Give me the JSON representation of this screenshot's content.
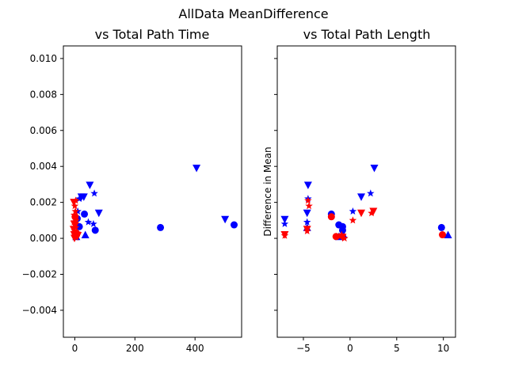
{
  "figure": {
    "suptitle": "AllData MeanDifference"
  },
  "colors": {
    "blue": "#0000ff",
    "red": "#ff0000",
    "axis": "#000000"
  },
  "chart_data": [
    {
      "type": "scatter",
      "title": "vs Total Path Time",
      "xlabel": "",
      "ylabel": "",
      "xlim": [
        -38,
        555
      ],
      "ylim": [
        -0.0055,
        0.0107
      ],
      "xticks": [
        0,
        200,
        400
      ],
      "xtick_labels": [
        "0",
        "200",
        "400"
      ],
      "yticks": [
        -0.004,
        -0.002,
        0.0,
        0.002,
        0.004,
        0.006,
        0.008,
        0.01
      ],
      "ytick_labels": [
        "−0.004",
        "−0.002",
        "0.000",
        "0.002",
        "0.004",
        "0.006",
        "0.008",
        "0.010"
      ],
      "grid": false,
      "series": [
        {
          "color": "blue",
          "points": [
            {
              "x": 32,
              "y": 0.00135,
              "m": "circle"
            },
            {
              "x": 15,
              "y": 0.00065,
              "m": "circle"
            },
            {
              "x": 68,
              "y": 0.00045,
              "m": "circle"
            },
            {
              "x": 285,
              "y": 0.0006,
              "m": "circle"
            },
            {
              "x": 530,
              "y": 0.00075,
              "m": "circle"
            },
            {
              "x": 8,
              "y": 0.0011,
              "m": "circle"
            },
            {
              "x": 50,
              "y": 0.00295,
              "m": "tri_down"
            },
            {
              "x": 405,
              "y": 0.0039,
              "m": "tri_down"
            },
            {
              "x": 500,
              "y": 0.00105,
              "m": "tri_down"
            },
            {
              "x": 80,
              "y": 0.0014,
              "m": "tri_down"
            },
            {
              "x": 22,
              "y": 0.0023,
              "m": "tri_down"
            },
            {
              "x": 30,
              "y": 0.0023,
              "m": "tri_down"
            },
            {
              "x": 35,
              "y": 0.0002,
              "m": "tri_up"
            },
            {
              "x": 5,
              "y": 0.0001,
              "m": "tri_up"
            },
            {
              "x": 65,
              "y": 0.0025,
              "m": "star"
            },
            {
              "x": 15,
              "y": 0.0022,
              "m": "star"
            },
            {
              "x": 45,
              "y": 0.0009,
              "m": "star"
            },
            {
              "x": 62,
              "y": 0.0008,
              "m": "star"
            },
            {
              "x": 10,
              "y": 0.0015,
              "m": "star"
            }
          ]
        },
        {
          "color": "red",
          "points": [
            {
              "x": -3,
              "y": 0.002,
              "m": "tri_down"
            },
            {
              "x": 3,
              "y": 0.0021,
              "m": "star"
            },
            {
              "x": 0,
              "y": 0.0018,
              "m": "star"
            },
            {
              "x": 2,
              "y": 0.0015,
              "m": "star"
            },
            {
              "x": -2,
              "y": 0.0013,
              "m": "star"
            },
            {
              "x": 1,
              "y": 0.0012,
              "m": "circle"
            },
            {
              "x": 4,
              "y": 0.001,
              "m": "star"
            },
            {
              "x": -1,
              "y": 0.0008,
              "m": "tri_down"
            },
            {
              "x": 3,
              "y": 0.0006,
              "m": "star"
            },
            {
              "x": -4,
              "y": 0.0005,
              "m": "tri_down"
            },
            {
              "x": 0,
              "y": 0.0004,
              "m": "star"
            },
            {
              "x": 5,
              "y": 0.0003,
              "m": "circle"
            },
            {
              "x": -2,
              "y": 0.0002,
              "m": "tri_down"
            },
            {
              "x": 2,
              "y": 0.0001,
              "m": "star"
            },
            {
              "x": 6,
              "y": 0.0002,
              "m": "circle"
            },
            {
              "x": -1,
              "y": 0.0,
              "m": "tri_down"
            },
            {
              "x": 4,
              "y": 5e-05,
              "m": "star"
            },
            {
              "x": 8,
              "y": 0.0003,
              "m": "star"
            },
            {
              "x": 10,
              "y": 0.00015,
              "m": "tri_down"
            },
            {
              "x": 1,
              "y": 0.0007,
              "m": "tri_down"
            },
            {
              "x": -3,
              "y": 0.0009,
              "m": "star"
            }
          ]
        }
      ]
    },
    {
      "type": "scatter",
      "title": "vs Total Path Length",
      "xlabel": "",
      "ylabel": "Difference in Mean",
      "xlim": [
        -7.8,
        11.3
      ],
      "ylim": [
        -0.0055,
        0.0107
      ],
      "xticks": [
        -5,
        0,
        5,
        10
      ],
      "xtick_labels": [
        "−5",
        "0",
        "5",
        "10"
      ],
      "yticks": [
        -0.004,
        -0.002,
        0.0,
        0.002,
        0.004,
        0.006,
        0.008,
        0.01
      ],
      "ytick_labels": [
        "",
        "",
        "",
        "",
        "",
        "",
        "",
        ""
      ],
      "grid": false,
      "series": [
        {
          "color": "blue",
          "points": [
            {
              "x": -7,
              "y": 0.00105,
              "m": "tri_down"
            },
            {
              "x": -7,
              "y": 0.0008,
              "m": "star"
            },
            {
              "x": -4.5,
              "y": 0.00295,
              "m": "tri_down"
            },
            {
              "x": -4.5,
              "y": 0.0022,
              "m": "star"
            },
            {
              "x": -4.6,
              "y": 0.0014,
              "m": "tri_down"
            },
            {
              "x": -4.6,
              "y": 0.0009,
              "m": "star"
            },
            {
              "x": -4.6,
              "y": 0.0006,
              "m": "tri_up"
            },
            {
              "x": -2,
              "y": 0.00135,
              "m": "circle"
            },
            {
              "x": -1.2,
              "y": 0.00075,
              "m": "circle"
            },
            {
              "x": -0.8,
              "y": 0.00065,
              "m": "circle"
            },
            {
              "x": -0.8,
              "y": 0.00045,
              "m": "circle"
            },
            {
              "x": -1.2,
              "y": 0.0001,
              "m": "tri_up"
            },
            {
              "x": -0.7,
              "y": 0.0002,
              "m": "tri_up"
            },
            {
              "x": 0.3,
              "y": 0.0015,
              "m": "star"
            },
            {
              "x": 1.2,
              "y": 0.0023,
              "m": "tri_down"
            },
            {
              "x": 2.2,
              "y": 0.0025,
              "m": "star"
            },
            {
              "x": 2.6,
              "y": 0.0039,
              "m": "tri_down"
            },
            {
              "x": 9.8,
              "y": 0.0006,
              "m": "circle"
            },
            {
              "x": 10.5,
              "y": 0.0002,
              "m": "tri_up"
            }
          ]
        },
        {
          "color": "red",
          "points": [
            {
              "x": -7,
              "y": 0.0002,
              "m": "tri_down"
            },
            {
              "x": -7,
              "y": 0.00015,
              "m": "star"
            },
            {
              "x": -4.5,
              "y": 0.0021,
              "m": "star"
            },
            {
              "x": -4.4,
              "y": 0.0018,
              "m": "star"
            },
            {
              "x": -4.6,
              "y": 0.0005,
              "m": "tri_down"
            },
            {
              "x": -4.6,
              "y": 0.0004,
              "m": "star"
            },
            {
              "x": -2,
              "y": 0.0012,
              "m": "circle"
            },
            {
              "x": -1.5,
              "y": 0.0001,
              "m": "circle"
            },
            {
              "x": -1.1,
              "y": 0.0001,
              "m": "star"
            },
            {
              "x": -0.8,
              "y": 5e-05,
              "m": "tri_down"
            },
            {
              "x": -0.6,
              "y": 0.0,
              "m": "star"
            },
            {
              "x": -0.9,
              "y": 0.0002,
              "m": "star"
            },
            {
              "x": 0.3,
              "y": 0.001,
              "m": "star"
            },
            {
              "x": 1.2,
              "y": 0.0014,
              "m": "tri_down"
            },
            {
              "x": 2.3,
              "y": 0.0014,
              "m": "star"
            },
            {
              "x": 2.5,
              "y": 0.0015,
              "m": "tri_down"
            },
            {
              "x": 9.9,
              "y": 0.0002,
              "m": "circle"
            }
          ]
        }
      ]
    }
  ]
}
